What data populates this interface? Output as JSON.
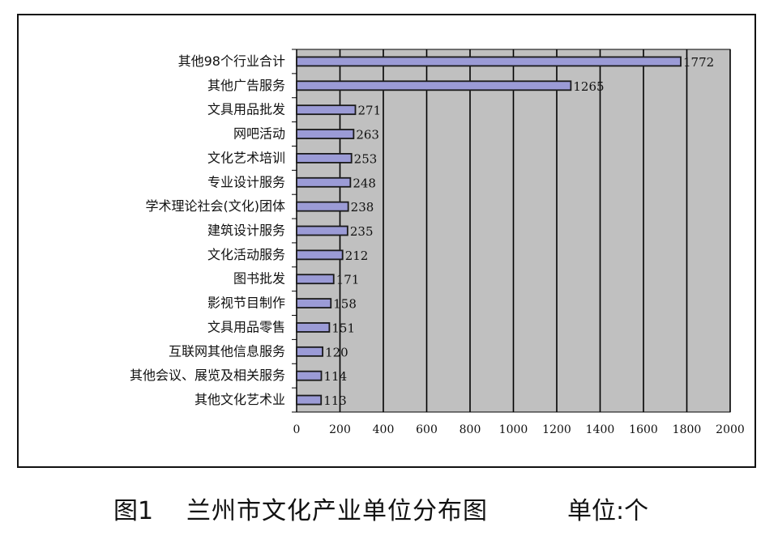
{
  "figure": {
    "label": "图1",
    "title": "兰州市文化产业单位分布图",
    "unit": "单位:个"
  },
  "colors": {
    "bar_fill": "#9b9bd6",
    "bar_stroke": "#1a1a1a",
    "plot_bg": "#c0c0c0",
    "grid": "#000000"
  },
  "chart_data": {
    "type": "bar",
    "orientation": "horizontal",
    "categories": [
      "其他98个行业合计",
      "其他广告服务",
      "文具用品批发",
      "网吧活动",
      "文化艺术培训",
      "专业设计服务",
      "学术理论社会(文化)团体",
      "建筑设计服务",
      "文化活动服务",
      "图书批发",
      "影视节目制作",
      "文具用品零售",
      "互联网其他信息服务",
      "其他会议、展览及相关服务",
      "其他文化艺术业"
    ],
    "values": [
      1772,
      1265,
      271,
      263,
      253,
      248,
      238,
      235,
      212,
      171,
      158,
      151,
      120,
      114,
      113
    ],
    "data_labels": [
      "1772",
      "1265",
      "271",
      "263",
      "253",
      "248",
      "238",
      "235",
      "212",
      "171",
      "158",
      "151",
      "120",
      "114",
      "113"
    ],
    "xlim": [
      0,
      2000
    ],
    "x_ticks": [
      "0",
      "200",
      "400",
      "600",
      "800",
      "1000",
      "1200",
      "1400",
      "1600",
      "1800",
      "2000"
    ],
    "grid": true,
    "legend": "none"
  }
}
